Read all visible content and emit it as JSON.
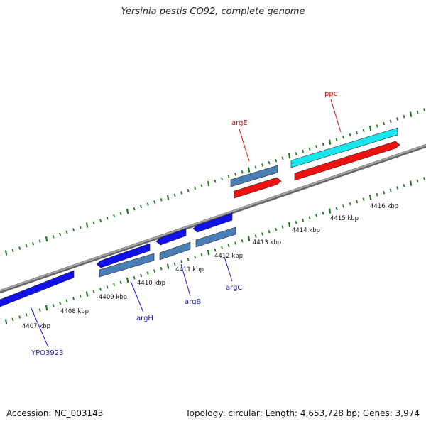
{
  "title": "Yersinia pestis CO92, complete genome",
  "footer": {
    "accession": "Accession: NC_003143",
    "summary": "Topology: circular; Length: 4,653,728 bp; Genes: 3,974"
  },
  "colors": {
    "backbone": "#8a8a8a",
    "tick": "#1f7a1f",
    "blue_gene": "#1010e8",
    "steel_gene": "#4a7fb5",
    "red_gene": "#ee1111",
    "cyan_gene": "#19e6ee",
    "label_blue": "#1a1ad0",
    "label_red": "#d01010"
  },
  "scale": {
    "labels": [
      "4407 kbp",
      "4408 kbp",
      "4409 kbp",
      "4410 kbp",
      "4411 kbp",
      "4412 kbp",
      "4413 kbp",
      "4414 kbp",
      "4415 kbp",
      "4416 kbp"
    ]
  },
  "genes": [
    {
      "name": "YPO3923",
      "color": "blue"
    },
    {
      "name": "argH",
      "color": "blue"
    },
    {
      "name": "argB",
      "color": "blue"
    },
    {
      "name": "argC",
      "color": "blue"
    },
    {
      "name": "argE",
      "color": "red"
    },
    {
      "name": "ppc",
      "color": "red"
    }
  ]
}
